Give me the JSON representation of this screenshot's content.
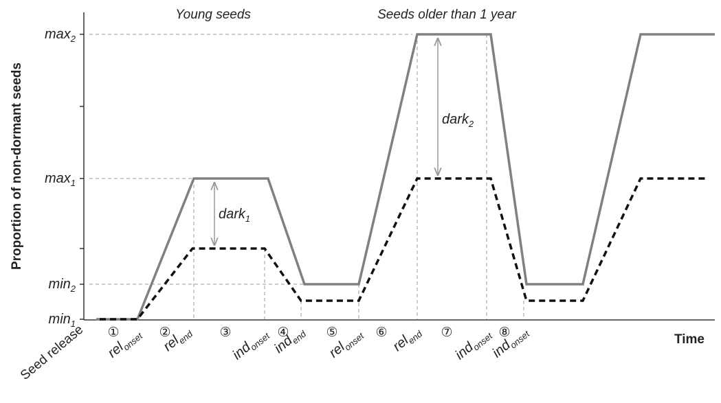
{
  "phase_labels": [
    "Young seeds",
    "Seeds older than 1 year"
  ],
  "y_title": "Proportion of non-dormant seeds",
  "x_title": "Time",
  "y_levels": [
    {
      "base": "max",
      "sub": "2"
    },
    {
      "base": "max",
      "sub": "1"
    },
    {
      "base": "min",
      "sub": "2"
    },
    {
      "base": "min",
      "sub": "1"
    }
  ],
  "dark_labels": [
    {
      "base": "dark",
      "sub": "1"
    },
    {
      "base": "dark",
      "sub": "2"
    }
  ],
  "seed_release": "Seed release",
  "x_labels": [
    {
      "base": "rel",
      "sub": "onset"
    },
    {
      "base": "rel",
      "sub": "end"
    },
    {
      "base": "ind",
      "sub": "onset"
    },
    {
      "base": "ind",
      "sub": "end"
    },
    {
      "base": "rel",
      "sub": "onset"
    },
    {
      "base": "rel",
      "sub": "end"
    },
    {
      "base": "ind",
      "sub": "onset"
    },
    {
      "base": "ind",
      "sub": "onset"
    }
  ],
  "steps": [
    "①",
    "②",
    "③",
    "④",
    "⑤",
    "⑥",
    "⑦",
    "⑧"
  ]
}
